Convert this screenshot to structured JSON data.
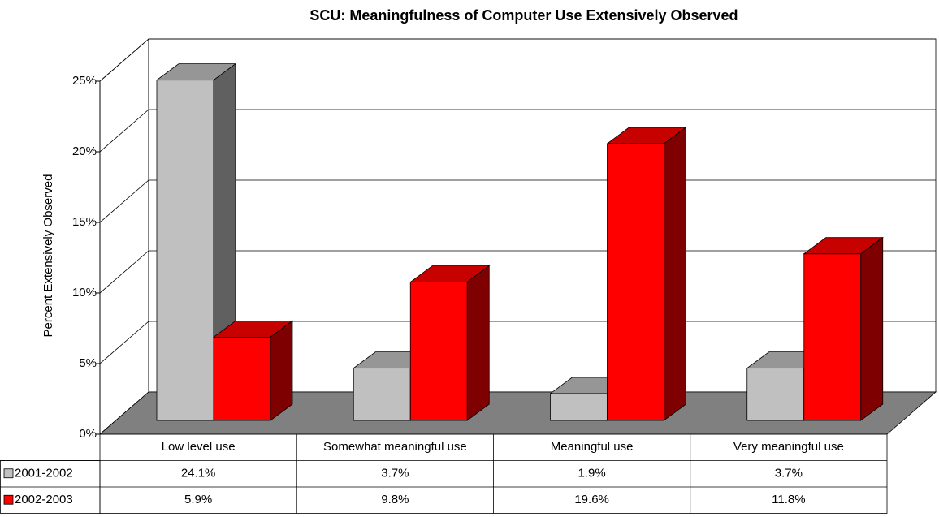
{
  "chart_data": {
    "type": "bar3d",
    "title": "SCU:  Meaningfulness of Computer Use Extensively Observed",
    "y_label": "Percent Extensively Observed",
    "categories": [
      "Low level use",
      "Somewhat meaningful use",
      "Meaningful use",
      "Very meaningful use"
    ],
    "series": [
      {
        "name": "2001-2002",
        "color": "#c0c0c0",
        "values": [
          24.1,
          3.7,
          1.9,
          3.7
        ],
        "value_labels": [
          "24.1%",
          "3.7%",
          "1.9%",
          "3.7%"
        ]
      },
      {
        "name": "2002-2003",
        "color": "#ff0000",
        "values": [
          5.9,
          9.8,
          19.6,
          11.8
        ],
        "value_labels": [
          "5.9%",
          "9.8%",
          "19.6%",
          "11.8%"
        ]
      }
    ],
    "ylim": [
      0,
      25
    ],
    "yticks": [
      {
        "value": 0,
        "label": "0%"
      },
      {
        "value": 5,
        "label": "5%"
      },
      {
        "value": 10,
        "label": "10%"
      },
      {
        "value": 15,
        "label": "15%"
      },
      {
        "value": 20,
        "label": "20%"
      },
      {
        "value": 25,
        "label": "25%"
      }
    ],
    "grid": true
  }
}
